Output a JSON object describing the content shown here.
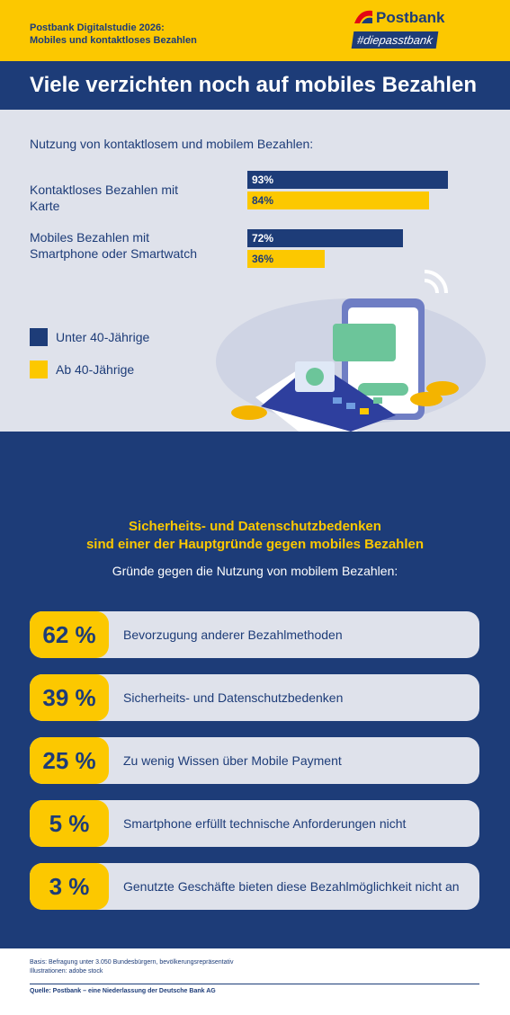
{
  "header": {
    "study": "Postbank Digitalstudie 2026:",
    "topic": "Mobiles und kontaktloses Bezahlen",
    "brand": "Postbank",
    "hashtag": "#diepasstbank"
  },
  "title": "Viele verzichten noch auf mobiles Bezahlen",
  "chart_data": {
    "type": "bar",
    "orientation": "horizontal",
    "title": "Nutzung von kontaktlosem und mobilem Bezahlen:",
    "categories": [
      "Kontaktloses Bezahlen mit Karte",
      "Mobiles Bezahlen mit Smartphone oder Smartwatch"
    ],
    "series": [
      {
        "name": "Unter 40-Jährige",
        "color": "#1d3c78",
        "values": [
          93,
          72
        ],
        "value_labels": [
          "93%",
          "72%"
        ]
      },
      {
        "name": "Ab 40-Jährige",
        "color": "#fcc800",
        "values": [
          84,
          36
        ],
        "value_labels": [
          "84%",
          "36%"
        ]
      }
    ],
    "legend": "bottom-left"
  },
  "reasons": {
    "heading": [
      "Sicherheits- und Datenschutzbedenken",
      "sind einer der Hauptgründe gegen mobiles Bezahlen"
    ],
    "subtitle": "Gründe gegen die Nutzung von mobilem Bezahlen:",
    "items": [
      {
        "percent": "62 %",
        "text": "Bevorzugung anderer Bezahlmethoden"
      },
      {
        "percent": "39 %",
        "text": "Sicherheits- und Datenschutzbedenken"
      },
      {
        "percent": "25 %",
        "text": "Zu wenig Wissen über Mobile Payment"
      },
      {
        "percent": "5 %",
        "text": "Smartphone erfüllt technische Anforderungen nicht"
      },
      {
        "percent": "3 %",
        "text": "Genutzte Geschäfte bieten diese Bezahlmöglichkeit nicht an"
      }
    ]
  },
  "footer": {
    "basis": "Basis: Befragung unter 3.050 Bundesbürgern, bevölkerungsrepräsentativ",
    "illustrations": "Illustrationen: adobe stock",
    "source": "Quelle: Postbank – eine Niederlassung der Deutsche Bank AG"
  }
}
